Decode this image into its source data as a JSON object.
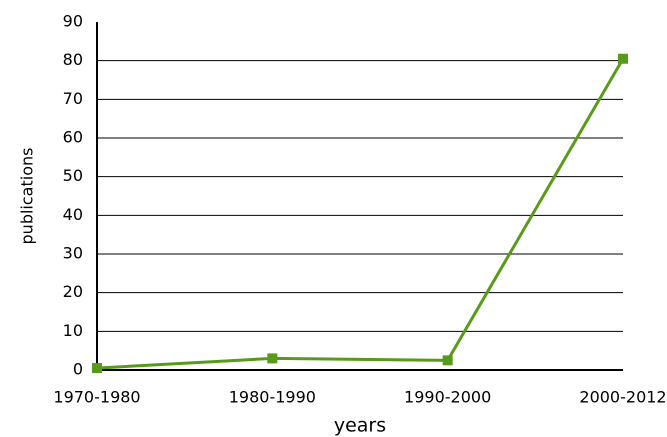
{
  "chart_data": {
    "type": "line",
    "categories": [
      "1970-1980",
      "1980-1990",
      "1990-2000",
      "2000-2012"
    ],
    "series": [
      {
        "name": "publications",
        "color": "#5a9a1a",
        "values": [
          0.5,
          3,
          2.5,
          80.5
        ]
      }
    ],
    "ylim": [
      0,
      90
    ],
    "yticks": [
      0,
      10,
      20,
      30,
      40,
      50,
      60,
      70,
      80,
      90
    ],
    "xlabel": "years",
    "ylabel": "publications",
    "grid": true
  }
}
